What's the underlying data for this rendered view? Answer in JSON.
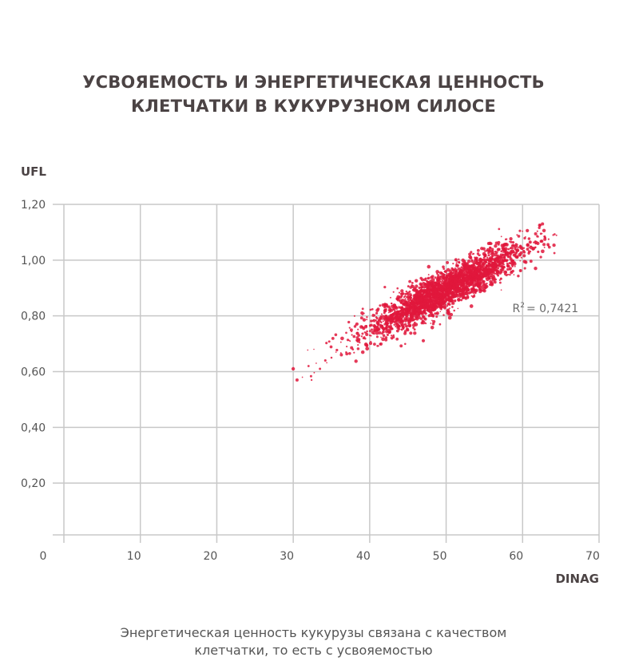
{
  "title_lines": [
    "УСВОЯЕМОСТЬ И ЭНЕРГЕТИЧЕСКАЯ ЦЕННОСТЬ",
    "КЛЕТЧАТКИ В КУКУРУЗНОМ СИЛОСЕ"
  ],
  "caption_lines": [
    "Энергетическая ценность кукурузы связана с качеством",
    "клетчатки, то есть с усвояемостью"
  ],
  "colors": {
    "points": "#e0183c",
    "grid": "#c8c8c8",
    "text": "#555555"
  },
  "chart_data": {
    "type": "scatter",
    "ylabel": "UFL",
    "xlabel": "DINAG",
    "xlim": [
      0,
      70
    ],
    "ylim": [
      0,
      1.2
    ],
    "x_ticks": [
      "0",
      "10",
      "20",
      "30",
      "40",
      "50",
      "60",
      "70"
    ],
    "y_ticks": [
      "0,20",
      "0,40",
      "0,60",
      "0,80",
      "1,00",
      "1,20"
    ],
    "grid": true,
    "annotation": {
      "r_label": "R",
      "superscript": "2",
      "value_text": "= 0,7421",
      "x": 59.5,
      "y": 0.805
    },
    "series": [
      {
        "point_count": 2600,
        "points": [
          [
            30.0,
            0.61
          ],
          [
            30.5,
            0.57
          ],
          [
            31.2,
            0.58
          ],
          [
            32.0,
            0.62
          ],
          [
            32.4,
            0.57
          ],
          [
            33.0,
            0.63
          ],
          [
            33.5,
            0.61
          ],
          [
            34.2,
            0.64
          ],
          [
            35.0,
            0.65
          ],
          [
            35.6,
            0.67
          ],
          [
            36.3,
            0.66
          ],
          [
            37.0,
            0.69
          ],
          [
            37.8,
            0.68
          ],
          [
            38.5,
            0.71
          ],
          [
            39.2,
            0.72
          ],
          [
            40.0,
            0.73
          ],
          [
            41.0,
            0.75
          ],
          [
            42.0,
            0.77
          ],
          [
            43.0,
            0.79
          ],
          [
            44.0,
            0.8
          ],
          [
            45.0,
            0.82
          ],
          [
            46.0,
            0.83
          ],
          [
            47.0,
            0.85
          ],
          [
            48.0,
            0.86
          ],
          [
            49.0,
            0.88
          ],
          [
            50.0,
            0.89
          ],
          [
            51.0,
            0.9
          ],
          [
            52.0,
            0.92
          ],
          [
            53.0,
            0.93
          ],
          [
            54.0,
            0.95
          ],
          [
            55.0,
            0.96
          ],
          [
            56.0,
            0.98
          ],
          [
            57.0,
            0.99
          ],
          [
            58.0,
            1.0
          ],
          [
            59.0,
            1.02
          ],
          [
            60.0,
            1.04
          ],
          [
            61.0,
            1.05
          ],
          [
            62.0,
            1.06
          ],
          [
            63.0,
            1.08
          ],
          [
            64.0,
            1.09
          ]
        ]
      }
    ]
  }
}
